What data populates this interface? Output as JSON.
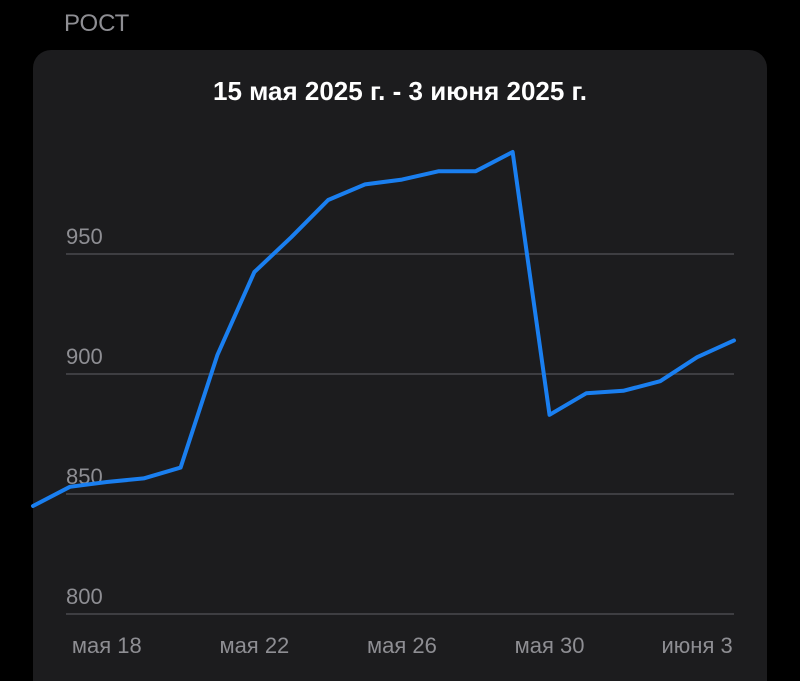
{
  "header": "РОСТ",
  "chart_data": {
    "type": "line",
    "title": "15 мая 2025 г. - 3 июня 2025 г.",
    "x": [
      "2025-05-16",
      "2025-05-17",
      "2025-05-18",
      "2025-05-19",
      "2025-05-20",
      "2025-05-21",
      "2025-05-22",
      "2025-05-23",
      "2025-05-24",
      "2025-05-25",
      "2025-05-26",
      "2025-05-27",
      "2025-05-28",
      "2025-05-29",
      "2025-05-30",
      "2025-05-31",
      "2025-06-01",
      "2025-06-02",
      "2025-06-03",
      "2025-06-04"
    ],
    "values": [
      845,
      853,
      855,
      856.5,
      861,
      908,
      942.5,
      957,
      972.5,
      979,
      981,
      984.5,
      984.5,
      992.5,
      883,
      892,
      893,
      897,
      907,
      914
    ],
    "color": "#1a7ff0",
    "xlim": [
      "2025-05-16",
      "2025-06-04"
    ],
    "xticks": [
      {
        "value": "2025-05-18",
        "label": "мая 18"
      },
      {
        "value": "2025-05-22",
        "label": "мая 22"
      },
      {
        "value": "2025-05-26",
        "label": "мая 26"
      },
      {
        "value": "2025-05-30",
        "label": "мая 30"
      },
      {
        "value": "2025-06-03",
        "label": "июня 3"
      }
    ],
    "ylim": [
      800,
      1000
    ],
    "yticks": [
      800,
      850,
      900,
      950
    ],
    "grid": true
  }
}
